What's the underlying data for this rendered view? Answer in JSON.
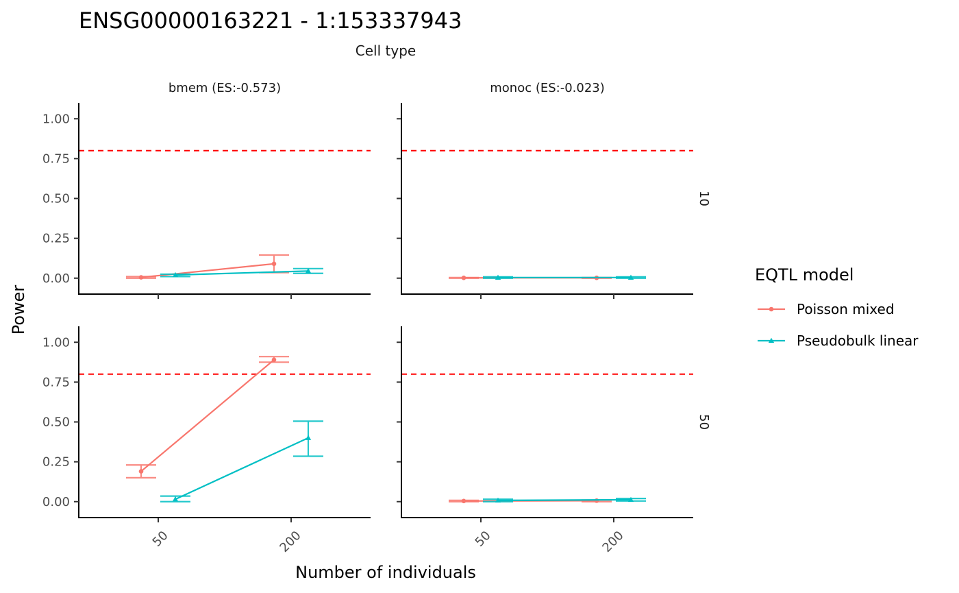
{
  "chart_data": {
    "type": "line",
    "title": "ENSG00000163221 - 1:153337943",
    "facet_top_label": "Cell type",
    "xlabel": "Number of individuals",
    "ylabel": "Power",
    "x_categories": [
      "50",
      "200"
    ],
    "yticks": [
      "0.00",
      "0.25",
      "0.50",
      "0.75",
      "1.00"
    ],
    "ylim": [
      -0.1,
      1.1
    ],
    "threshold": 0.8,
    "threshold_color": "#ff0000",
    "columns": [
      "bmem (ES:-0.573)",
      "monoc (ES:-0.023)"
    ],
    "rows": [
      "10",
      "50"
    ],
    "legend": {
      "title": "EQTL model",
      "entries": [
        {
          "name": "Poisson mixed",
          "color": "#f8766d",
          "marker": "circle"
        },
        {
          "name": "Pseudobulk linear",
          "color": "#00bfc4",
          "marker": "triangle"
        }
      ]
    },
    "panels": [
      {
        "row": "10",
        "column": "bmem (ES:-0.573)",
        "series": [
          {
            "name": "Poisson mixed",
            "points": [
              {
                "x": "50",
                "y": 0.005,
                "lo": 0.0,
                "hi": 0.01
              },
              {
                "x": "200",
                "y": 0.09,
                "lo": 0.035,
                "hi": 0.145
              }
            ]
          },
          {
            "name": "Pseudobulk linear",
            "points": [
              {
                "x": "50",
                "y": 0.02,
                "lo": 0.01,
                "hi": 0.025
              },
              {
                "x": "200",
                "y": 0.045,
                "lo": 0.03,
                "hi": 0.06
              }
            ]
          }
        ]
      },
      {
        "row": "10",
        "column": "monoc (ES:-0.023)",
        "series": [
          {
            "name": "Poisson mixed",
            "points": [
              {
                "x": "50",
                "y": 0.002,
                "lo": 0.0,
                "hi": 0.004
              },
              {
                "x": "200",
                "y": 0.002,
                "lo": 0.0,
                "hi": 0.004
              }
            ]
          },
          {
            "name": "Pseudobulk linear",
            "points": [
              {
                "x": "50",
                "y": 0.004,
                "lo": 0.0,
                "hi": 0.008
              },
              {
                "x": "200",
                "y": 0.004,
                "lo": 0.0,
                "hi": 0.008
              }
            ]
          }
        ]
      },
      {
        "row": "50",
        "column": "bmem (ES:-0.573)",
        "series": [
          {
            "name": "Poisson mixed",
            "points": [
              {
                "x": "50",
                "y": 0.19,
                "lo": 0.15,
                "hi": 0.23
              },
              {
                "x": "200",
                "y": 0.89,
                "lo": 0.875,
                "hi": 0.91
              }
            ]
          },
          {
            "name": "Pseudobulk linear",
            "points": [
              {
                "x": "50",
                "y": 0.015,
                "lo": 0.0,
                "hi": 0.035
              },
              {
                "x": "200",
                "y": 0.4,
                "lo": 0.285,
                "hi": 0.505
              }
            ]
          }
        ]
      },
      {
        "row": "50",
        "column": "monoc (ES:-0.023)",
        "series": [
          {
            "name": "Poisson mixed",
            "points": [
              {
                "x": "50",
                "y": 0.004,
                "lo": 0.0,
                "hi": 0.008
              },
              {
                "x": "200",
                "y": 0.006,
                "lo": 0.0,
                "hi": 0.01
              }
            ]
          },
          {
            "name": "Pseudobulk linear",
            "points": [
              {
                "x": "50",
                "y": 0.008,
                "lo": 0.0,
                "hi": 0.015
              },
              {
                "x": "200",
                "y": 0.012,
                "lo": 0.004,
                "hi": 0.02
              }
            ]
          }
        ]
      }
    ]
  }
}
